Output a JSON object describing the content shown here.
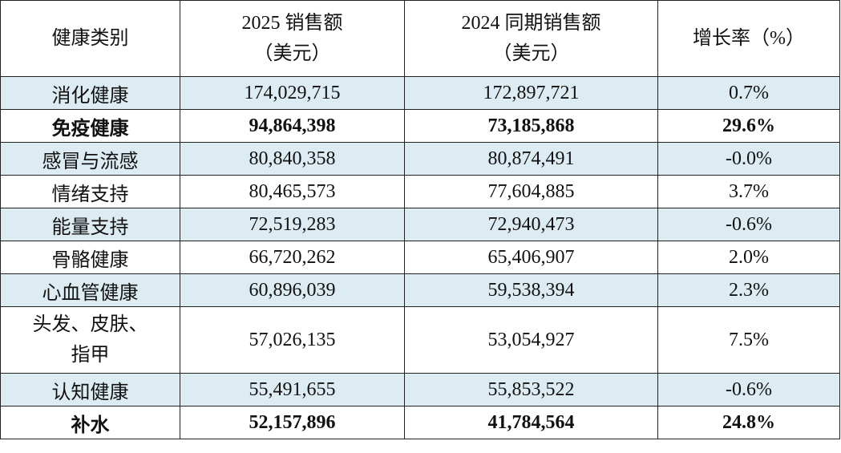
{
  "header": {
    "category": "健康类别",
    "sales_2025": [
      "2025 销售额",
      "（美元）"
    ],
    "sales_2024": [
      "2024 同期销售额",
      "（美元）"
    ],
    "growth": "增长率（%）"
  },
  "rows": [
    {
      "category": "消化健康",
      "sales_2025": "174,029,715",
      "sales_2024": "172,897,721",
      "growth": "0.7%"
    },
    {
      "category": "免疫健康",
      "sales_2025": "94,864,398",
      "sales_2024": "73,185,868",
      "growth": "29.6%"
    },
    {
      "category": "感冒与流感",
      "sales_2025": "80,840,358",
      "sales_2024": "80,874,491",
      "growth": "-0.0%"
    },
    {
      "category": "情绪支持",
      "sales_2025": "80,465,573",
      "sales_2024": "77,604,885",
      "growth": "3.7%"
    },
    {
      "category": "能量支持",
      "sales_2025": "72,519,283",
      "sales_2024": "72,940,473",
      "growth": "-0.6%"
    },
    {
      "category": "骨骼健康",
      "sales_2025": "66,720,262",
      "sales_2024": "65,406,907",
      "growth": "2.0%"
    },
    {
      "category": "心血管健康",
      "sales_2025": "60,896,039",
      "sales_2024": "59,538,394",
      "growth": "2.3%"
    },
    {
      "category": [
        "头发、皮肤、",
        "指甲"
      ],
      "sales_2025": "57,026,135",
      "sales_2024": "53,054,927",
      "growth": "7.5%"
    },
    {
      "category": "认知健康",
      "sales_2025": "55,491,655",
      "sales_2024": "55,853,522",
      "growth": "-0.6%"
    },
    {
      "category": "补水",
      "sales_2025": "52,157,896",
      "sales_2024": "41,784,564",
      "growth": "24.8%"
    }
  ],
  "colors": {
    "shaded_row": "#dcecf2",
    "border": "#222222"
  }
}
